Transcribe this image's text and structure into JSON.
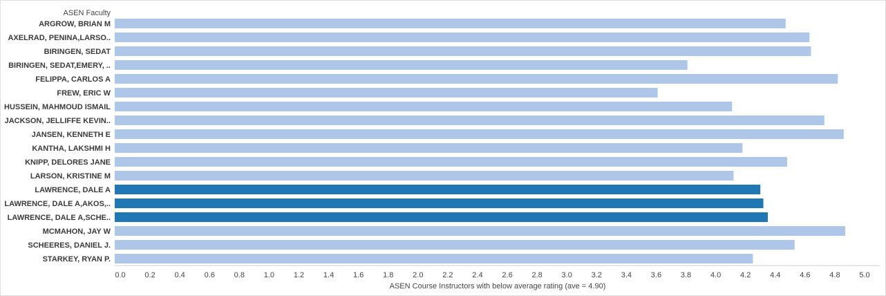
{
  "chart_data": {
    "type": "bar",
    "orientation": "horizontal",
    "row_header": "ASEN Faculty",
    "xlabel": "ASEN Course Instructors with below average rating (ave = 4.90)",
    "xlim": [
      0,
      5.0
    ],
    "xticks": [
      "0.0",
      "0.2",
      "0.4",
      "0.6",
      "0.8",
      "1.0",
      "1.2",
      "1.4",
      "1.6",
      "1.8",
      "2.0",
      "2.2",
      "2.4",
      "2.6",
      "2.8",
      "3.0",
      "3.2",
      "3.4",
      "3.6",
      "3.8",
      "4.0",
      "4.2",
      "4.4",
      "4.6",
      "4.8",
      "5.0"
    ],
    "grid": false,
    "colors": {
      "default": "#aec7e8",
      "highlight": "#1f77b4"
    },
    "categories": [
      "ARGROW, BRIAN M",
      "AXELRAD, PENINA,LARSO..",
      "BIRINGEN, SEDAT",
      "BIRINGEN, SEDAT,EMERY, ..",
      "FELIPPA, CARLOS A",
      "FREW, ERIC W",
      "HUSSEIN, MAHMOUD ISMAIL",
      "JACKSON, JELLIFFE KEVIN..",
      "JANSEN, KENNETH E",
      "KANTHA, LAKSHMI H",
      "KNIPP, DELORES JANE",
      "LARSON, KRISTINE M",
      "LAWRENCE, DALE A",
      "LAWRENCE, DALE A,AKOS,..",
      "LAWRENCE, DALE A,SCHE..",
      "MCMAHON, JAY W",
      "SCHEERES, DANIEL J.",
      "STARKEY, RYAN P."
    ],
    "values": [
      4.47,
      4.63,
      4.64,
      3.81,
      4.82,
      3.61,
      4.11,
      4.73,
      4.86,
      4.18,
      4.48,
      4.12,
      4.3,
      4.32,
      4.35,
      4.87,
      4.53,
      4.25
    ],
    "highlighted": [
      false,
      false,
      false,
      false,
      false,
      false,
      false,
      false,
      false,
      false,
      false,
      false,
      true,
      true,
      true,
      false,
      false,
      false
    ]
  }
}
